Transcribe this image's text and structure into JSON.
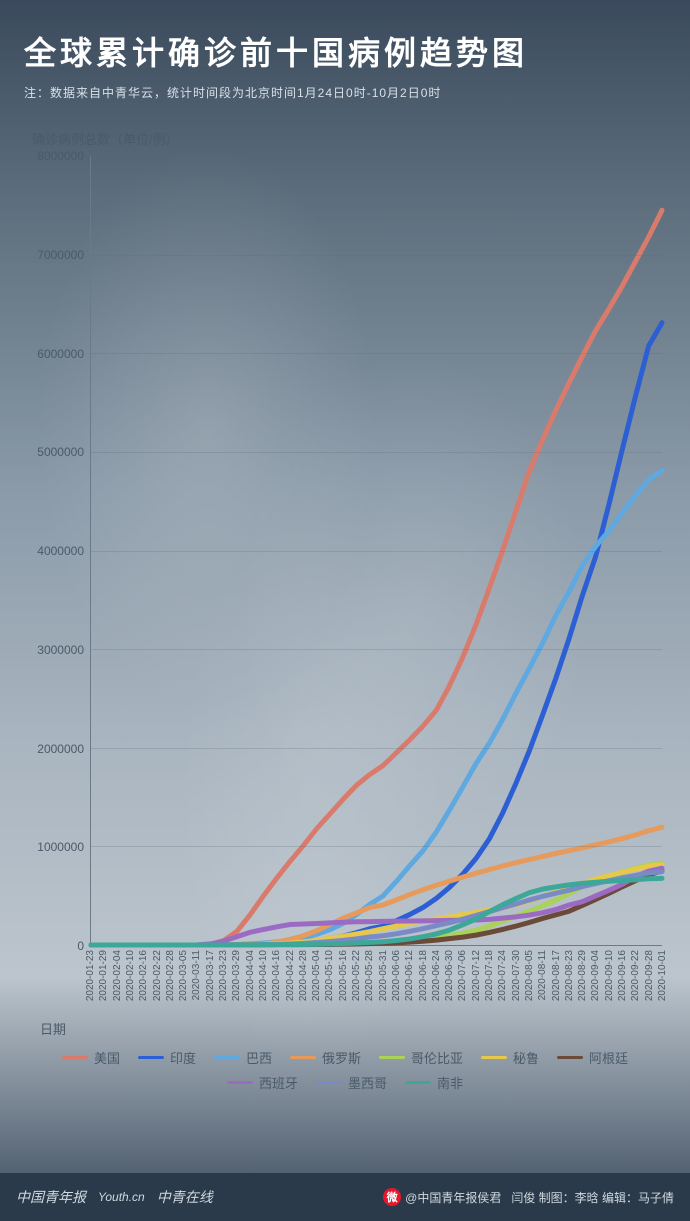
{
  "header": {
    "title": "全球累计确诊前十国病例趋势图",
    "subtitle": "注：数据来自中青华云，统计时间段为北京时间1月24日0时-10月2日0时"
  },
  "chart": {
    "type": "line",
    "y_title": "确诊病例总数（单位/例）",
    "x_title": "日期",
    "ylim": [
      0,
      8000000
    ],
    "ytick_step": 1000000,
    "y_ticks": [
      "0",
      "1000000",
      "2000000",
      "3000000",
      "4000000",
      "5000000",
      "6000000",
      "7000000",
      "8000000"
    ],
    "x_labels": [
      "2020-01-23",
      "2020-01-29",
      "2020-02-04",
      "2020-02-10",
      "2020-02-16",
      "2020-02-22",
      "2020-02-28",
      "2020-03-05",
      "2020-03-11",
      "2020-03-17",
      "2020-03-23",
      "2020-03-29",
      "2020-04-04",
      "2020-04-10",
      "2020-04-16",
      "2020-04-22",
      "2020-04-28",
      "2020-05-04",
      "2020-05-10",
      "2020-05-16",
      "2020-05-22",
      "2020-05-28",
      "2020-05-31",
      "2020-06-06",
      "2020-06-12",
      "2020-06-18",
      "2020-06-24",
      "2020-06-30",
      "2020-07-06",
      "2020-07-12",
      "2020-07-18",
      "2020-07-24",
      "2020-07-30",
      "2020-08-05",
      "2020-08-11",
      "2020-08-17",
      "2020-08-23",
      "2020-08-29",
      "2020-09-04",
      "2020-09-10",
      "2020-09-16",
      "2020-09-22",
      "2020-09-28",
      "2020-10-01"
    ],
    "line_width": 2.5,
    "grid_color": "rgba(90,106,120,0.25)",
    "axis_color": "#6a7a88",
    "tick_font_size": 12,
    "title_font_size": 32,
    "background": "transparent",
    "series": [
      {
        "name": "美国",
        "color": "#d97b6c",
        "data": [
          0,
          0,
          0,
          0,
          0,
          0,
          0,
          20,
          200,
          6000,
          46000,
          140000,
          310000,
          500000,
          680000,
          850000,
          1010000,
          1180000,
          1330000,
          1480000,
          1620000,
          1730000,
          1820000,
          1950000,
          2080000,
          2220000,
          2380000,
          2630000,
          2920000,
          3250000,
          3620000,
          4000000,
          4400000,
          4800000,
          5120000,
          5420000,
          5700000,
          5970000,
          6230000,
          6450000,
          6680000,
          6930000,
          7180000,
          7450000
        ]
      },
      {
        "name": "印度",
        "color": "#2d5fd4",
        "data": [
          0,
          0,
          0,
          0,
          0,
          0,
          0,
          0,
          30,
          135,
          500,
          1100,
          3600,
          7500,
          13400,
          21400,
          31300,
          46400,
          67000,
          90600,
          125000,
          165000,
          190500,
          247000,
          309000,
          380000,
          472000,
          585100,
          720300,
          878200,
          1077600,
          1337000,
          1638800,
          1964500,
          2329600,
          2702700,
          3106300,
          3542700,
          3936700,
          4465800,
          5020300,
          5562600,
          6074700,
          6310000
        ]
      },
      {
        "name": "巴西",
        "color": "#5fa8e0",
        "data": [
          0,
          0,
          0,
          0,
          0,
          0,
          0,
          0,
          30,
          300,
          2000,
          4600,
          11000,
          20000,
          31000,
          46000,
          72000,
          108000,
          156000,
          220000,
          310000,
          411800,
          498400,
          645800,
          802800,
          955400,
          1145900,
          1368200,
          1603000,
          1839800,
          2046300,
          2287400,
          2552200,
          2801900,
          3057400,
          3340100,
          3582300,
          3846100,
          4041600,
          4197800,
          4382200,
          4558000,
          4717900,
          4810900
        ]
      },
      {
        "name": "俄罗斯",
        "color": "#e69a5c",
        "data": [
          0,
          0,
          0,
          0,
          0,
          0,
          0,
          0,
          20,
          100,
          500,
          1800,
          4700,
          12000,
          28000,
          58000,
          93600,
          145000,
          209700,
          272000,
          326400,
          379000,
          405800,
          458700,
          511400,
          561000,
          606000,
          647800,
          687800,
          727100,
          765000,
          800800,
          834400,
          866600,
          897600,
          927700,
          956700,
          985300,
          1015100,
          1046300,
          1079500,
          1115800,
          1159500,
          1194600
        ]
      },
      {
        "name": "哥伦比亚",
        "color": "#aad158",
        "data": [
          0,
          0,
          0,
          0,
          0,
          0,
          0,
          0,
          0,
          60,
          300,
          700,
          1500,
          2700,
          3400,
          4400,
          5900,
          7900,
          11000,
          15000,
          19100,
          24100,
          28200,
          38000,
          46900,
          60200,
          77100,
          97800,
          120300,
          150400,
          190700,
          240700,
          295500,
          345700,
          397600,
          456700,
          522100,
          590500,
          650000,
          694600,
          736300,
          777500,
          813000,
          829700
        ]
      },
      {
        "name": "秘鲁",
        "color": "#e6c84a",
        "data": [
          0,
          0,
          0,
          0,
          0,
          0,
          0,
          0,
          0,
          100,
          400,
          1000,
          2000,
          6000,
          12500,
          19300,
          31200,
          47400,
          68800,
          88500,
          111700,
          135900,
          164500,
          191800,
          220700,
          244400,
          264700,
          285200,
          309300,
          330100,
          353600,
          379900,
          407500,
          447600,
          489700,
          535900,
          576100,
          621000,
          670100,
          702800,
          738000,
          768900,
          800100,
          814800
        ]
      },
      {
        "name": "阿根廷",
        "color": "#6b4a3a",
        "data": [
          0,
          0,
          0,
          0,
          0,
          0,
          0,
          0,
          0,
          70,
          300,
          800,
          1500,
          2100,
          2800,
          3400,
          4100,
          5000,
          6000,
          7800,
          10600,
          13900,
          16900,
          22000,
          28800,
          37500,
          49800,
          64500,
          80400,
          100200,
          126800,
          158300,
          191300,
          228200,
          268500,
          305900,
          342100,
          401200,
          461900,
          524200,
          589000,
          652100,
          711300,
          751000
        ]
      },
      {
        "name": "西班牙",
        "color": "#9b6bc4",
        "data": [
          0,
          0,
          0,
          0,
          0,
          0,
          0,
          30,
          2000,
          11000,
          40000,
          85000,
          130000,
          158000,
          184000,
          208000,
          213000,
          218400,
          224400,
          231000,
          234800,
          236800,
          239600,
          241500,
          243200,
          244700,
          247100,
          249300,
          251800,
          253900,
          260300,
          272400,
          285400,
          302800,
          326600,
          359000,
          405400,
          439300,
          498000,
          554100,
          614300,
          693500,
          748300,
          778600
        ]
      },
      {
        "name": "墨西哥",
        "color": "#7a8ac4",
        "data": [
          0,
          0,
          0,
          0,
          0,
          0,
          0,
          0,
          10,
          100,
          400,
          1000,
          1900,
          3800,
          6300,
          10500,
          16800,
          24900,
          35000,
          47100,
          62500,
          81400,
          93400,
          113600,
          139200,
          165500,
          196800,
          226100,
          261700,
          299700,
          338900,
          378200,
          416200,
          456100,
          492500,
          525700,
          556200,
          591700,
          623000,
          652400,
          680900,
          705300,
          730300,
          743200
        ]
      },
      {
        "name": "南非",
        "color": "#3da89a",
        "data": [
          0,
          0,
          0,
          0,
          0,
          0,
          0,
          0,
          10,
          100,
          400,
          1300,
          1700,
          2200,
          2800,
          3800,
          5000,
          7200,
          10000,
          14300,
          20100,
          27400,
          32700,
          45900,
          61900,
          83900,
          111800,
          151200,
          205700,
          264200,
          337600,
          408000,
          471100,
          529900,
          566100,
          589900,
          609800,
          625000,
          636900,
          646400,
          653400,
          661900,
          670800,
          676100
        ]
      }
    ]
  },
  "footer": {
    "left_brands": [
      "中国青年报",
      "Youth.cn",
      "中青在线"
    ],
    "weibo_handle": "@中国青年报侯君",
    "credits": "闫俊 制图：李晗 编辑：马子倩"
  }
}
